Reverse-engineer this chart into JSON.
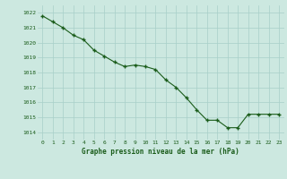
{
  "x": [
    0,
    1,
    2,
    3,
    4,
    5,
    6,
    7,
    8,
    9,
    10,
    11,
    12,
    13,
    14,
    15,
    16,
    17,
    18,
    19,
    20,
    21,
    22,
    23
  ],
  "y": [
    1021.8,
    1021.4,
    1021.0,
    1020.5,
    1020.2,
    1019.5,
    1019.1,
    1018.7,
    1018.4,
    1018.5,
    1018.4,
    1018.2,
    1017.5,
    1017.0,
    1016.3,
    1015.5,
    1014.8,
    1014.8,
    1014.3,
    1014.3,
    1015.2,
    1015.2,
    1015.2,
    1015.2
  ],
  "line_color": "#1a5c1a",
  "marker_color": "#1a5c1a",
  "bg_color": "#cce8e0",
  "grid_color": "#a8cfc8",
  "xlabel": "Graphe pression niveau de la mer (hPa)",
  "xlabel_color": "#1a5c1a",
  "tick_color": "#1a5c1a",
  "ylim": [
    1013.5,
    1022.5
  ],
  "yticks": [
    1014,
    1015,
    1016,
    1017,
    1018,
    1019,
    1020,
    1021,
    1022
  ],
  "xticks": [
    0,
    1,
    2,
    3,
    4,
    5,
    6,
    7,
    8,
    9,
    10,
    11,
    12,
    13,
    14,
    15,
    16,
    17,
    18,
    19,
    20,
    21,
    22,
    23
  ]
}
